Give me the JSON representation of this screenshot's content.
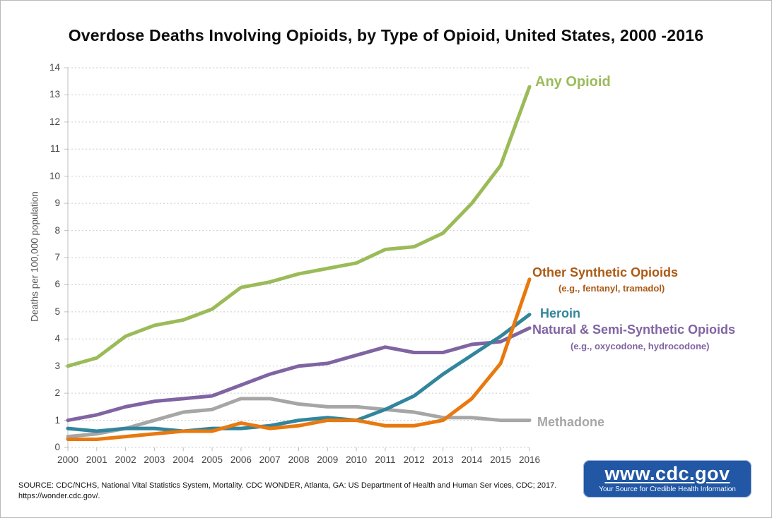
{
  "chart": {
    "title": "Overdose Deaths Involving Opioids, by Type of Opioid, United States, 2000 -2016",
    "y_axis_title": "Deaths per 100,000 population"
  },
  "chart_data": {
    "type": "line",
    "title": "Overdose Deaths Involving Opioids, by Type of Opioid, United States, 2000 -2016",
    "xlabel": "",
    "ylabel": "Deaths per 100,000 population",
    "x": [
      2000,
      2001,
      2002,
      2003,
      2004,
      2005,
      2006,
      2007,
      2008,
      2009,
      2010,
      2011,
      2012,
      2013,
      2014,
      2015,
      2016
    ],
    "ylim": [
      0,
      14
    ],
    "ytick_step": 1,
    "grid": "horizontal-dotted",
    "legend_position": "inline-right-labels",
    "series": [
      {
        "name": "Any Opioid",
        "color": "#9bbb59",
        "values": [
          3.0,
          3.3,
          4.1,
          4.5,
          4.7,
          5.1,
          5.9,
          6.1,
          6.4,
          6.6,
          6.8,
          7.3,
          7.4,
          7.9,
          9.0,
          10.4,
          13.3
        ]
      },
      {
        "name": "Other Synthetic Opioids",
        "sublabel": "(e.g., fentanyl, tramadol)",
        "color": "#e8790f",
        "label_color": "#ab5a15",
        "values": [
          0.3,
          0.3,
          0.4,
          0.5,
          0.6,
          0.6,
          0.9,
          0.7,
          0.8,
          1.0,
          1.0,
          0.8,
          0.8,
          1.0,
          1.8,
          3.1,
          6.2
        ]
      },
      {
        "name": "Heroin",
        "color": "#31859c",
        "values": [
          0.7,
          0.6,
          0.7,
          0.7,
          0.6,
          0.7,
          0.7,
          0.8,
          1.0,
          1.1,
          1.0,
          1.4,
          1.9,
          2.7,
          3.4,
          4.1,
          4.9
        ]
      },
      {
        "name": "Natural & Semi-Synthetic Opioids",
        "sublabel": "(e.g., oxycodone, hydrocodone)",
        "color": "#8064a2",
        "values": [
          1.0,
          1.2,
          1.5,
          1.7,
          1.8,
          1.9,
          2.3,
          2.7,
          3.0,
          3.1,
          3.4,
          3.7,
          3.5,
          3.5,
          3.8,
          3.9,
          4.4
        ]
      },
      {
        "name": "Methadone",
        "color": "#a6a6a6",
        "values": [
          0.4,
          0.5,
          0.7,
          1.0,
          1.3,
          1.4,
          1.8,
          1.8,
          1.6,
          1.5,
          1.5,
          1.4,
          1.3,
          1.1,
          1.1,
          1.0,
          1.0
        ]
      }
    ]
  },
  "footer": {
    "source_lines": [
      "SOURCE: CDC/NCHS, National Vital Statistics System, Mortality. CDC WONDER, Atlanta, GA: US Department of Health and Human Ser vices, CDC; 2017.",
      "https://wonder.cdc.gov/."
    ],
    "logo": {
      "url": "www.cdc.gov",
      "tagline": "Your Source for Credible Health Information"
    }
  }
}
